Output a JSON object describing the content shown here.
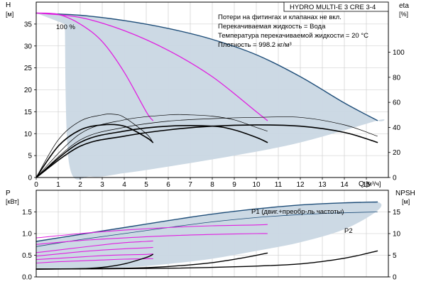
{
  "model_box": "HYDRO MULTI-E 3 CRE 3-4",
  "notes": [
    "Потери на фитингах и клапанах не вкл.",
    "Перекачиваемая жидкость = Вода",
    "Температура перекачиваемой жидкости = 20 °C",
    "Плотность = 998.2 кг/м³"
  ],
  "colors": {
    "envelope_fill": "#c9d7e3",
    "envelope_edge": "#1f4e79",
    "magenta": "#e020e0",
    "black": "#000000",
    "grid": "#c8c8c8"
  },
  "chart_data": [
    {
      "type": "line",
      "id": "head",
      "ylabel": "H",
      "yunit": "[м]",
      "y2label": "eta",
      "y2unit": "[%]",
      "xlabel": "Q",
      "xunit": "[м³/ч]",
      "xlim": [
        0,
        16
      ],
      "ylim": [
        0,
        40
      ],
      "y2lim": [
        0,
        140
      ],
      "xticks": [
        0,
        1,
        2,
        3,
        4,
        5,
        6,
        7,
        8,
        9,
        10,
        11,
        12,
        13,
        14,
        15
      ],
      "yticks": [
        0,
        5,
        10,
        15,
        20,
        25,
        30,
        35
      ],
      "y2ticks": [
        0,
        20,
        40,
        60,
        80,
        100
      ],
      "grid": true,
      "annotations": [
        {
          "text": "100 %",
          "x": 1.3,
          "y": 37.5
        }
      ],
      "envelope": {
        "upper": [
          [
            0,
            37.5
          ],
          [
            2,
            37
          ],
          [
            4,
            35.8
          ],
          [
            6,
            34
          ],
          [
            8,
            31.5
          ],
          [
            10,
            28
          ],
          [
            12,
            23
          ],
          [
            14,
            17
          ],
          [
            15.5,
            13
          ]
        ],
        "lower": [
          [
            15.5,
            13
          ],
          [
            12,
            8
          ],
          [
            9,
            5
          ],
          [
            6,
            2.5
          ],
          [
            4,
            1
          ],
          [
            2.5,
            0.2
          ],
          [
            1.5,
            3
          ],
          [
            1.3,
            35
          ]
        ]
      },
      "series": [
        {
          "role": "head-max",
          "color": "#1f4e79",
          "width": 1.4,
          "points": [
            [
              0,
              37.5
            ],
            [
              2,
              37
            ],
            [
              4,
              35.8
            ],
            [
              6,
              34
            ],
            [
              8,
              31.5
            ],
            [
              10,
              28
            ],
            [
              12,
              23
            ],
            [
              14,
              17
            ],
            [
              15.5,
              13
            ]
          ]
        },
        {
          "role": "head",
          "color": "#e020e0",
          "width": 1.3,
          "points": [
            [
              0,
              37.5
            ],
            [
              1,
              37.2
            ],
            [
              2,
              35
            ],
            [
              3,
              31
            ],
            [
              4,
              24
            ],
            [
              5,
              15
            ],
            [
              5.3,
              13
            ]
          ]
        },
        {
          "role": "head",
          "color": "#e020e0",
          "width": 1.3,
          "points": [
            [
              0,
              37.5
            ],
            [
              2,
              36.5
            ],
            [
              4,
              33.5
            ],
            [
              6,
              29
            ],
            [
              8,
              23
            ],
            [
              10,
              15
            ],
            [
              10.5,
              13
            ]
          ]
        },
        {
          "role": "eta",
          "axis": "y2",
          "color": "#000000",
          "width": 0.7,
          "points": [
            [
              0,
              0
            ],
            [
              1,
              30
            ],
            [
              2,
              45
            ],
            [
              3,
              50
            ],
            [
              3.5,
              50.5
            ],
            [
              4,
              48
            ],
            [
              5,
              35
            ],
            [
              5.3,
              28
            ]
          ]
        },
        {
          "role": "eta",
          "axis": "y2",
          "color": "#000000",
          "width": 1.6,
          "points": [
            [
              0,
              0
            ],
            [
              1,
              25
            ],
            [
              2,
              38
            ],
            [
              3,
              42
            ],
            [
              4,
              41
            ],
            [
              5,
              32
            ],
            [
              5.3,
              28
            ]
          ]
        },
        {
          "role": "eta",
          "axis": "y2",
          "color": "#000000",
          "width": 0.7,
          "points": [
            [
              0,
              0
            ],
            [
              2,
              35
            ],
            [
              4,
              46
            ],
            [
              6,
              50
            ],
            [
              7,
              50
            ],
            [
              8,
              49
            ],
            [
              9,
              46
            ],
            [
              10,
              40
            ],
            [
              10.5,
              37
            ]
          ]
        },
        {
          "role": "eta",
          "axis": "y2",
          "color": "#000000",
          "width": 1.6,
          "points": [
            [
              0,
              0
            ],
            [
              2,
              28
            ],
            [
              4,
              37
            ],
            [
              6,
              41
            ],
            [
              8,
              41
            ],
            [
              9,
              38
            ],
            [
              10,
              32
            ],
            [
              10.5,
              28
            ]
          ]
        },
        {
          "role": "eta",
          "axis": "y2",
          "color": "#000000",
          "width": 0.7,
          "points": [
            [
              0,
              0
            ],
            [
              2,
              30
            ],
            [
              4,
              40
            ],
            [
              6,
              45
            ],
            [
              8,
              47
            ],
            [
              10,
              48
            ],
            [
              12,
              48
            ],
            [
              14,
              42
            ],
            [
              15.5,
              33
            ]
          ]
        },
        {
          "role": "eta",
          "axis": "y2",
          "color": "#000000",
          "width": 1.6,
          "points": [
            [
              0,
              0
            ],
            [
              2,
              25
            ],
            [
              4,
              33
            ],
            [
              6,
              38
            ],
            [
              8,
              41
            ],
            [
              10,
              42
            ],
            [
              12,
              41
            ],
            [
              14,
              36
            ],
            [
              15.5,
              28
            ]
          ]
        }
      ]
    },
    {
      "type": "line",
      "id": "power",
      "ylabel": "P",
      "yunit": "[кВт]",
      "y2label": "NPSH",
      "y2unit": "[м]",
      "xlim": [
        0,
        16
      ],
      "ylim": [
        0,
        2
      ],
      "y2lim": [
        0,
        20
      ],
      "yticks": [
        0,
        0.5,
        1.0,
        1.5
      ],
      "ytick_labels": [
        "0.0",
        "0.5",
        "1.0",
        "1.5"
      ],
      "y2ticks": [
        0,
        5,
        10,
        15
      ],
      "grid": true,
      "annotations": [
        {
          "text": "P1 (двиг.+преобр-ль частоты)",
          "x": 12.8,
          "y": 1.83
        },
        {
          "text": "P2",
          "x": 15.3,
          "y": 1.35
        }
      ],
      "envelope": {
        "upper": [
          [
            0,
            0.82
          ],
          [
            2,
            0.98
          ],
          [
            4,
            1.14
          ],
          [
            6,
            1.3
          ],
          [
            8,
            1.45
          ],
          [
            10,
            1.57
          ],
          [
            12,
            1.66
          ],
          [
            14,
            1.71
          ],
          [
            15.5,
            1.73
          ]
        ],
        "lower": [
          [
            15.5,
            1.53
          ],
          [
            14,
            1.1
          ],
          [
            12,
            0.8
          ],
          [
            10,
            0.6
          ],
          [
            8,
            0.42
          ],
          [
            6,
            0.3
          ],
          [
            4,
            0.22
          ],
          [
            2,
            0.2
          ],
          [
            0,
            0.2
          ]
        ]
      },
      "series": [
        {
          "role": "P1",
          "color": "#1f4e79",
          "width": 1.4,
          "points": [
            [
              0,
              0.82
            ],
            [
              2,
              0.98
            ],
            [
              4,
              1.14
            ],
            [
              6,
              1.3
            ],
            [
              8,
              1.45
            ],
            [
              10,
              1.57
            ],
            [
              12,
              1.66
            ],
            [
              14,
              1.71
            ],
            [
              15.5,
              1.73
            ]
          ]
        },
        {
          "role": "P2",
          "color": "#1f4e79",
          "width": 0.8,
          "points": [
            [
              0,
              0.7
            ],
            [
              2,
              0.86
            ],
            [
              4,
              1.0
            ],
            [
              6,
              1.14
            ],
            [
              8,
              1.27
            ],
            [
              10,
              1.37
            ],
            [
              12,
              1.44
            ],
            [
              14,
              1.48
            ],
            [
              15.5,
              1.5
            ]
          ]
        },
        {
          "role": "P",
          "color": "#e020e0",
          "width": 1.1,
          "points": [
            [
              0,
              0.56
            ],
            [
              1,
              0.62
            ],
            [
              2,
              0.68
            ],
            [
              3,
              0.74
            ],
            [
              4,
              0.79
            ],
            [
              5,
              0.82
            ],
            [
              5.3,
              0.83
            ]
          ]
        },
        {
          "role": "P",
          "color": "#e020e0",
          "width": 1.1,
          "points": [
            [
              0,
              0.48
            ],
            [
              1,
              0.53
            ],
            [
              2,
              0.58
            ],
            [
              3,
              0.62
            ],
            [
              4,
              0.65
            ],
            [
              5,
              0.67
            ],
            [
              5.3,
              0.68
            ]
          ]
        },
        {
          "role": "P",
          "color": "#e020e0",
          "width": 1.1,
          "points": [
            [
              0,
              0.4
            ],
            [
              1,
              0.43
            ],
            [
              2,
              0.46
            ],
            [
              3,
              0.49
            ],
            [
              4,
              0.51
            ],
            [
              5,
              0.52
            ],
            [
              5.3,
              0.53
            ]
          ]
        },
        {
          "role": "P",
          "color": "#e020e0",
          "width": 1.1,
          "points": [
            [
              0,
              0.32
            ],
            [
              1,
              0.35
            ],
            [
              2,
              0.37
            ],
            [
              3,
              0.39
            ],
            [
              4,
              0.41
            ],
            [
              5,
              0.42
            ],
            [
              5.3,
              0.42
            ]
          ]
        },
        {
          "role": "P",
          "color": "#e020e0",
          "width": 1.1,
          "points": [
            [
              0,
              0.9
            ],
            [
              2,
              1.0
            ],
            [
              4,
              1.08
            ],
            [
              6,
              1.14
            ],
            [
              8,
              1.18
            ],
            [
              10,
              1.2
            ],
            [
              10.5,
              1.21
            ]
          ]
        },
        {
          "role": "P",
          "color": "#e020e0",
          "width": 1.1,
          "points": [
            [
              0,
              0.75
            ],
            [
              2,
              0.84
            ],
            [
              4,
              0.9
            ],
            [
              6,
              0.95
            ],
            [
              8,
              0.98
            ],
            [
              10,
              1.0
            ],
            [
              10.5,
              1.0
            ]
          ]
        },
        {
          "role": "NPSH",
          "axis": "y2",
          "color": "#000000",
          "width": 1.4,
          "points": [
            [
              0,
              1.8
            ],
            [
              2,
              1.9
            ],
            [
              3,
              2.2
            ],
            [
              4,
              3.0
            ],
            [
              5,
              4.5
            ],
            [
              5.3,
              5.2
            ]
          ]
        },
        {
          "role": "NPSH",
          "axis": "y2",
          "color": "#000000",
          "width": 1.4,
          "points": [
            [
              0,
              1.8
            ],
            [
              4,
              2.0
            ],
            [
              6,
              2.4
            ],
            [
              8,
              3.3
            ],
            [
              9.5,
              4.5
            ],
            [
              10.5,
              5.5
            ]
          ]
        },
        {
          "role": "NPSH",
          "axis": "y2",
          "color": "#000000",
          "width": 1.4,
          "points": [
            [
              0,
              1.8
            ],
            [
              6,
              2.0
            ],
            [
              10,
              2.5
            ],
            [
              12,
              3.0
            ],
            [
              13.5,
              3.9
            ],
            [
              14.5,
              4.8
            ],
            [
              15.5,
              6.0
            ]
          ]
        }
      ]
    }
  ]
}
